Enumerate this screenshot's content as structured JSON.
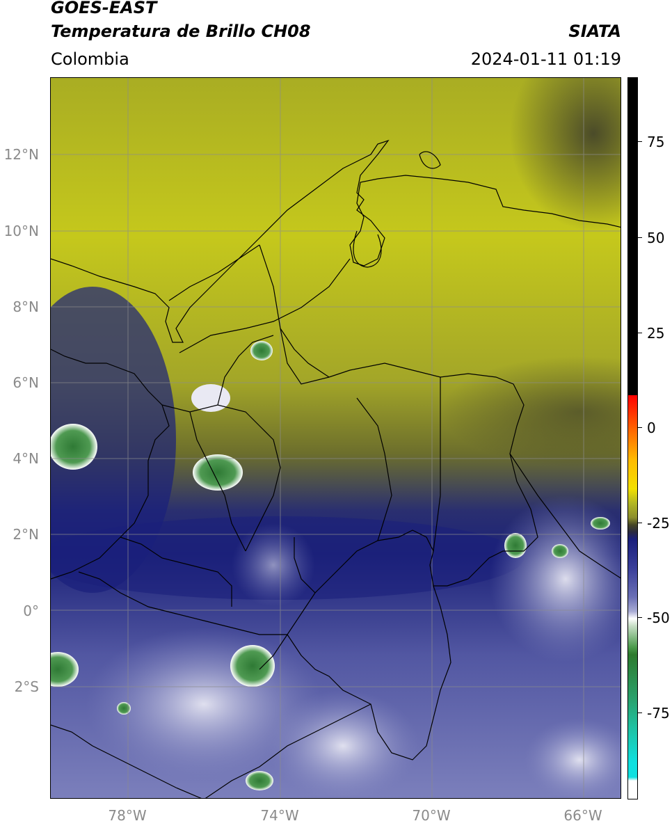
{
  "header": {
    "satellite": "GOES-EAST",
    "product": "Temperatura de Brillo CH08",
    "organization": "SIATA",
    "region": "Colombia",
    "datetime": "2024-01-11 01:19"
  },
  "map": {
    "lat_labels": [
      "12°N",
      "10°N",
      "8°N",
      "6°N",
      "4°N",
      "2°N",
      "0°",
      "2°S"
    ],
    "lon_labels": [
      "78°W",
      "74°W",
      "70°W",
      "66°W"
    ]
  },
  "colorbar": {
    "ticks": [
      "75",
      "50",
      "25",
      "0",
      "-25",
      "-50",
      "-75"
    ],
    "colors": [
      "#000000",
      "#ff0000",
      "#ff8800",
      "#f2e000",
      "#b2b623",
      "#454525",
      "#1a1f7c",
      "#6a6fb5",
      "#ffffff",
      "#2d7a2d",
      "#2aa06a",
      "#10e0e0",
      "#ffffff"
    ]
  }
}
